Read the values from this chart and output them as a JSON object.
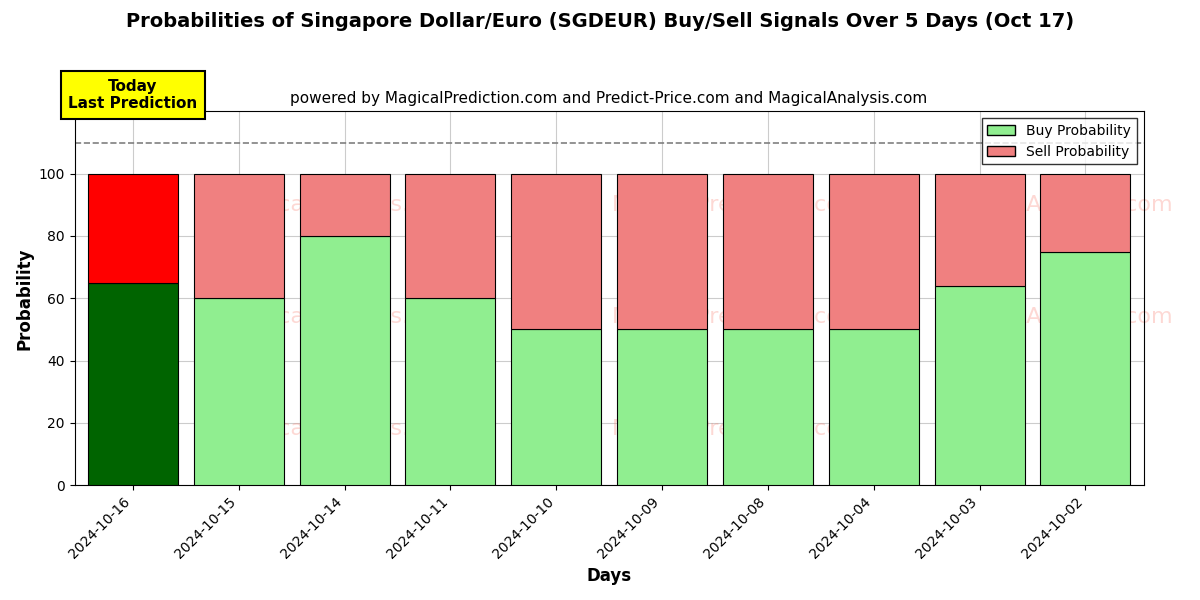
{
  "title": "Probabilities of Singapore Dollar/Euro (SGDEUR) Buy/Sell Signals Over 5 Days (Oct 17)",
  "subtitle": "powered by MagicalPrediction.com and Predict-Price.com and MagicalAnalysis.com",
  "xlabel": "Days",
  "ylabel": "Probability",
  "categories": [
    "2024-10-16",
    "2024-10-15",
    "2024-10-14",
    "2024-10-11",
    "2024-10-10",
    "2024-10-09",
    "2024-10-08",
    "2024-10-04",
    "2024-10-03",
    "2024-10-02"
  ],
  "buy_values": [
    65,
    60,
    80,
    60,
    50,
    50,
    50,
    50,
    64,
    75
  ],
  "sell_values": [
    35,
    40,
    20,
    40,
    50,
    50,
    50,
    50,
    36,
    25
  ],
  "buy_colors": [
    "#006400",
    "#90EE90",
    "#90EE90",
    "#90EE90",
    "#90EE90",
    "#90EE90",
    "#90EE90",
    "#90EE90",
    "#90EE90",
    "#90EE90"
  ],
  "sell_colors": [
    "#FF0000",
    "#F08080",
    "#F08080",
    "#F08080",
    "#F08080",
    "#F08080",
    "#F08080",
    "#F08080",
    "#F08080",
    "#F08080"
  ],
  "today_box_color": "#FFFF00",
  "today_label": "Today\nLast Prediction",
  "ylim": [
    0,
    120
  ],
  "yticks": [
    0,
    20,
    40,
    60,
    80,
    100
  ],
  "dashed_line_y": 110,
  "legend_buy_color": "#90EE90",
  "legend_sell_color": "#F08080",
  "background_color": "#ffffff",
  "bar_edge_color": "#000000",
  "bar_width": 0.85,
  "grid_color": "#cccccc",
  "title_fontsize": 14,
  "subtitle_fontsize": 11,
  "label_fontsize": 12
}
